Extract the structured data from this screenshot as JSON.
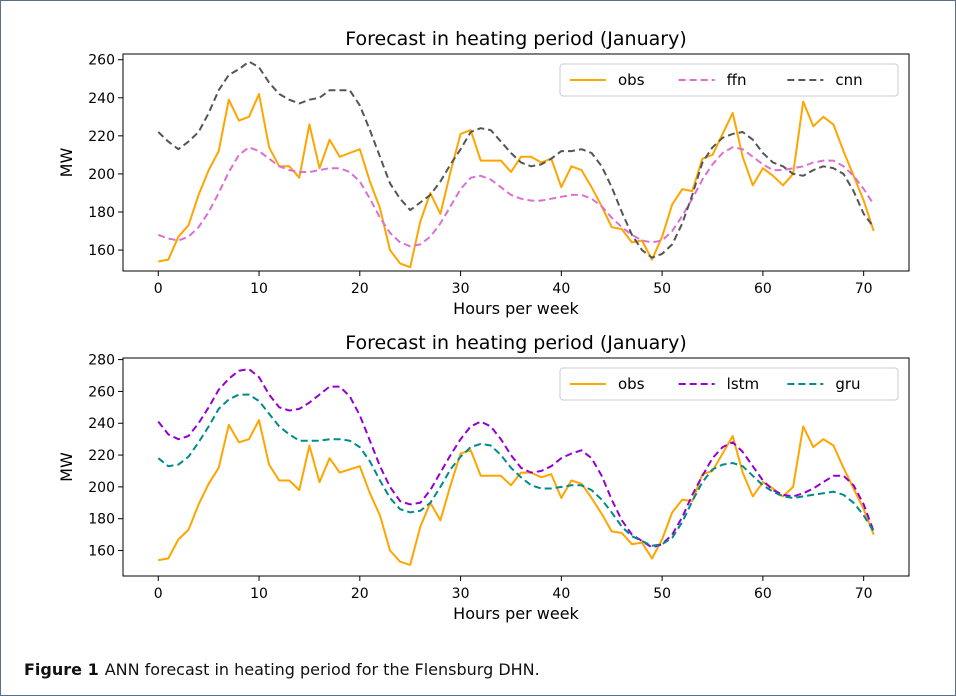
{
  "figure": {
    "caption_label": "Figure 1",
    "caption_text": "ANN forecast in heating period for the Flensburg DHN."
  },
  "chart_data": [
    {
      "type": "line",
      "title": "Forecast in heating period (January)",
      "xlabel": "Hours per week",
      "ylabel": "MW",
      "xlim": [
        -3.5,
        74.5
      ],
      "ylim": [
        149,
        263
      ],
      "xticks": [
        0,
        10,
        20,
        30,
        40,
        50,
        60,
        70
      ],
      "yticks": [
        160,
        180,
        200,
        220,
        240,
        260
      ],
      "legend_position": "top-right",
      "grid": false,
      "x": [
        0,
        1,
        2,
        3,
        4,
        5,
        6,
        7,
        8,
        9,
        10,
        11,
        12,
        13,
        14,
        15,
        16,
        17,
        18,
        19,
        20,
        21,
        22,
        23,
        24,
        25,
        26,
        27,
        28,
        29,
        30,
        31,
        32,
        33,
        34,
        35,
        36,
        37,
        38,
        39,
        40,
        41,
        42,
        43,
        44,
        45,
        46,
        47,
        48,
        49,
        50,
        51,
        52,
        53,
        54,
        55,
        56,
        57,
        58,
        59,
        60,
        61,
        62,
        63,
        64,
        65,
        66,
        67,
        68,
        69,
        70,
        71
      ],
      "series": [
        {
          "name": "obs",
          "color": "#ffa500",
          "dash": "solid",
          "values": [
            154,
            155,
            167,
            173,
            189,
            202,
            212,
            239,
            228,
            230,
            242,
            214,
            204,
            204,
            198,
            226,
            203,
            218,
            209,
            211,
            213,
            196,
            182,
            160,
            153,
            151,
            175,
            190,
            179,
            201,
            221,
            223,
            207,
            207,
            207,
            201,
            209,
            209,
            206,
            208,
            193,
            204,
            202,
            193,
            183,
            172,
            171,
            164,
            165,
            155,
            167,
            184,
            192,
            191,
            208,
            210,
            221,
            232,
            209,
            194,
            203,
            199,
            194,
            200,
            238,
            225,
            230,
            226,
            212,
            199,
            186,
            170
          ]
        },
        {
          "name": "ffn",
          "color": "#da70d6",
          "dash": "dashed",
          "values": [
            168,
            166,
            165,
            167,
            172,
            180,
            190,
            201,
            210,
            214,
            212,
            208,
            204,
            202,
            201,
            201,
            202,
            203,
            203,
            201,
            196,
            187,
            177,
            169,
            164,
            162,
            163,
            167,
            174,
            183,
            192,
            198,
            199,
            197,
            193,
            189,
            187,
            186,
            186,
            187,
            188,
            189,
            189,
            187,
            183,
            177,
            172,
            168,
            165,
            164,
            165,
            170,
            178,
            187,
            197,
            205,
            211,
            214,
            213,
            209,
            205,
            202,
            202,
            203,
            204,
            206,
            207,
            207,
            204,
            199,
            192,
            184
          ]
        },
        {
          "name": "cnn",
          "color": "#555555",
          "dash": "dashed",
          "values": [
            222,
            217,
            213,
            217,
            222,
            232,
            244,
            252,
            255,
            259,
            256,
            248,
            242,
            239,
            237,
            239,
            240,
            244,
            244,
            244,
            236,
            223,
            209,
            195,
            187,
            181,
            185,
            189,
            196,
            205,
            213,
            222,
            224,
            223,
            217,
            211,
            206,
            204,
            205,
            208,
            212,
            212,
            213,
            211,
            204,
            193,
            180,
            168,
            160,
            156,
            158,
            163,
            174,
            189,
            206,
            214,
            219,
            221,
            222,
            218,
            211,
            206,
            204,
            200,
            199,
            202,
            204,
            203,
            200,
            191,
            179,
            172
          ]
        }
      ]
    },
    {
      "type": "line",
      "title": "Forecast in heating period (January)",
      "xlabel": "Hours per week",
      "ylabel": "MW",
      "xlim": [
        -3.5,
        74.5
      ],
      "ylim": [
        144,
        281
      ],
      "xticks": [
        0,
        10,
        20,
        30,
        40,
        50,
        60,
        70
      ],
      "yticks": [
        160,
        180,
        200,
        220,
        240,
        260,
        280
      ],
      "legend_position": "top-right",
      "grid": false,
      "x": [
        0,
        1,
        2,
        3,
        4,
        5,
        6,
        7,
        8,
        9,
        10,
        11,
        12,
        13,
        14,
        15,
        16,
        17,
        18,
        19,
        20,
        21,
        22,
        23,
        24,
        25,
        26,
        27,
        28,
        29,
        30,
        31,
        32,
        33,
        34,
        35,
        36,
        37,
        38,
        39,
        40,
        41,
        42,
        43,
        44,
        45,
        46,
        47,
        48,
        49,
        50,
        51,
        52,
        53,
        54,
        55,
        56,
        57,
        58,
        59,
        60,
        61,
        62,
        63,
        64,
        65,
        66,
        67,
        68,
        69,
        70,
        71
      ],
      "series": [
        {
          "name": "obs",
          "color": "#ffa500",
          "dash": "solid",
          "values": [
            154,
            155,
            167,
            173,
            189,
            202,
            212,
            239,
            228,
            230,
            242,
            214,
            204,
            204,
            198,
            226,
            203,
            218,
            209,
            211,
            213,
            196,
            182,
            160,
            153,
            151,
            175,
            190,
            179,
            201,
            221,
            223,
            207,
            207,
            207,
            201,
            209,
            209,
            206,
            208,
            193,
            204,
            202,
            193,
            183,
            172,
            171,
            164,
            165,
            155,
            167,
            184,
            192,
            191,
            208,
            210,
            221,
            232,
            209,
            194,
            203,
            199,
            194,
            200,
            238,
            225,
            230,
            226,
            212,
            199,
            186,
            170
          ]
        },
        {
          "name": "lstm",
          "color": "#9400d3",
          "dash": "dashed",
          "values": [
            241,
            233,
            230,
            232,
            240,
            250,
            261,
            268,
            273,
            274,
            269,
            258,
            250,
            248,
            249,
            253,
            258,
            263,
            263,
            257,
            245,
            229,
            213,
            200,
            191,
            189,
            190,
            198,
            209,
            220,
            230,
            238,
            241,
            238,
            230,
            220,
            212,
            209,
            210,
            213,
            218,
            221,
            223,
            218,
            207,
            192,
            179,
            170,
            166,
            162,
            164,
            170,
            181,
            195,
            207,
            218,
            225,
            228,
            222,
            213,
            204,
            198,
            195,
            194,
            196,
            199,
            203,
            207,
            207,
            201,
            189,
            172
          ]
        },
        {
          "name": "gru",
          "color": "#008b8b",
          "dash": "dashed",
          "values": [
            218,
            213,
            214,
            219,
            228,
            238,
            249,
            255,
            258,
            258,
            254,
            246,
            238,
            233,
            229,
            229,
            229,
            230,
            230,
            229,
            225,
            216,
            204,
            193,
            186,
            184,
            185,
            190,
            200,
            211,
            219,
            225,
            227,
            226,
            220,
            212,
            206,
            201,
            199,
            199,
            200,
            201,
            201,
            198,
            192,
            184,
            175,
            169,
            166,
            163,
            164,
            168,
            178,
            191,
            203,
            211,
            214,
            215,
            213,
            207,
            201,
            197,
            194,
            193,
            194,
            195,
            196,
            197,
            195,
            190,
            182,
            172
          ]
        }
      ]
    }
  ]
}
